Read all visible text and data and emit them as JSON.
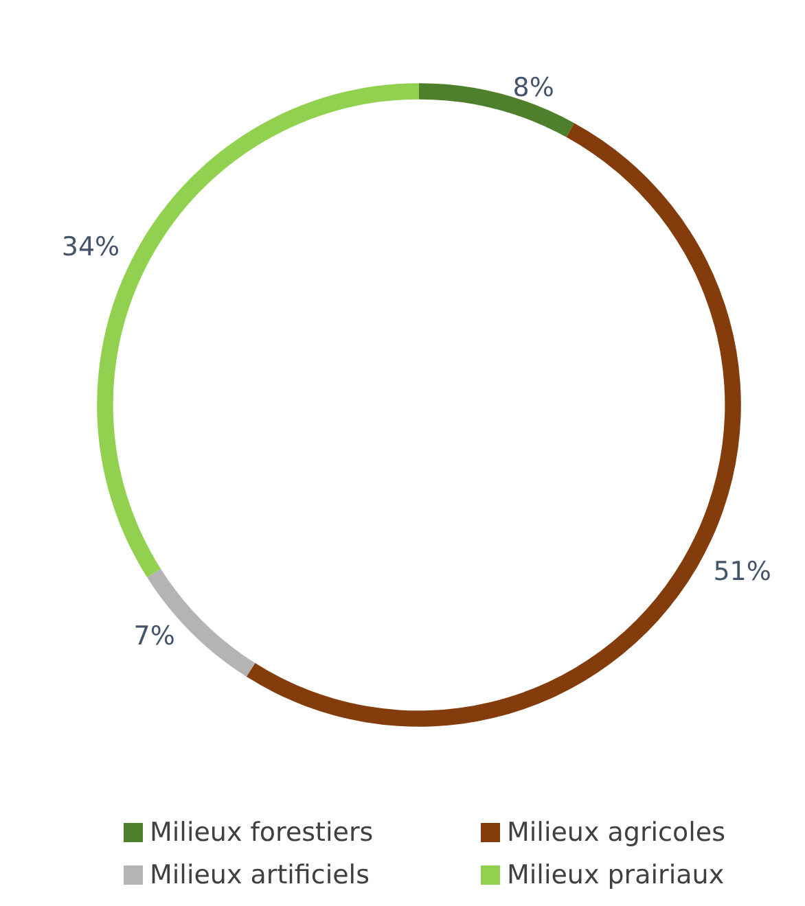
{
  "chart_data": {
    "type": "donut",
    "categories": [
      "Milieux forestiers",
      "Milieux agricoles",
      "Milieux artificiels",
      "Milieux prairiaux"
    ],
    "values": [
      8,
      51,
      7,
      34
    ],
    "value_labels": [
      "8%",
      "51%",
      "7%",
      "34%"
    ],
    "colors": [
      "#4e7f2c",
      "#843c0c",
      "#b4b4b4",
      "#92d050"
    ],
    "legend": "bottom"
  }
}
